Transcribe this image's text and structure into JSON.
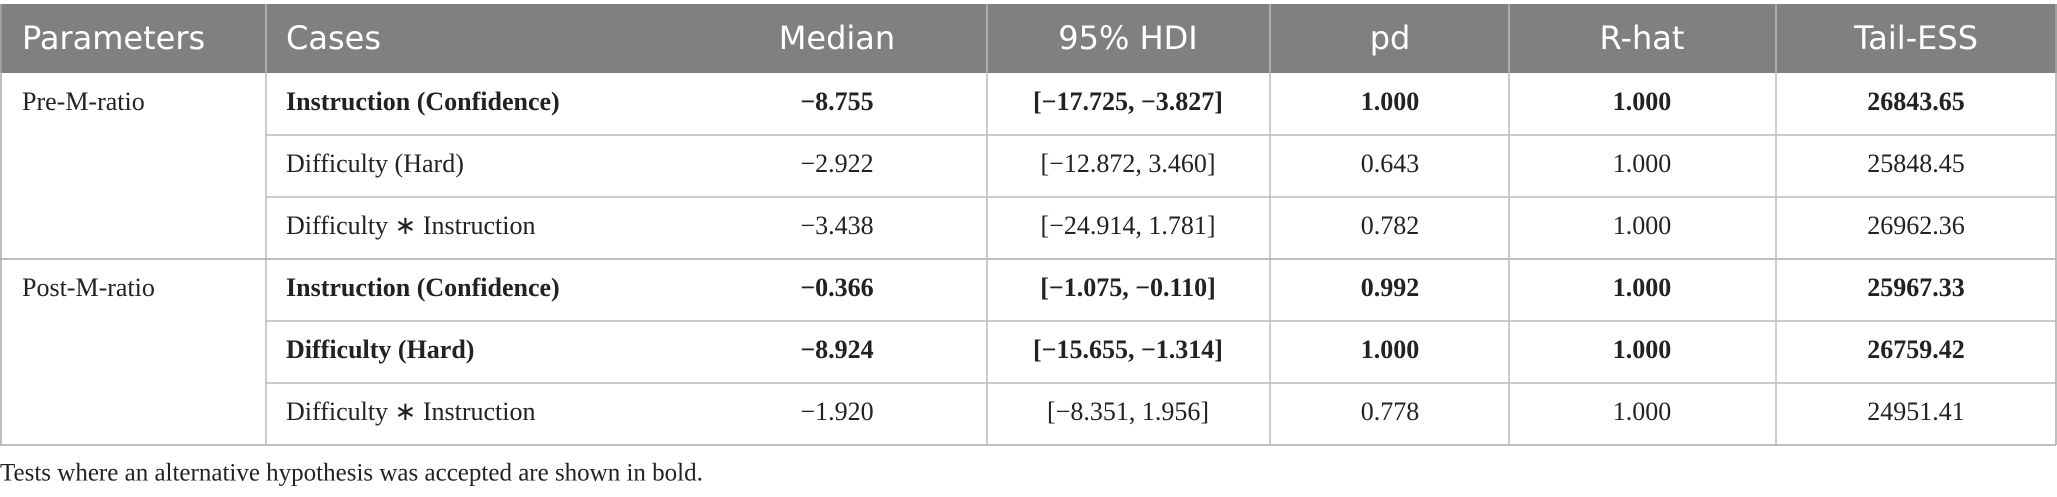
{
  "header": [
    "Parameters",
    "Cases",
    "Median",
    "95% HDI",
    "pd",
    "R-hat",
    "Tail-ESS"
  ],
  "groups": [
    {
      "parameter": "Pre-M-ratio",
      "rows": [
        {
          "case": "Instruction (Confidence)",
          "median": "−8.755",
          "hdi": "[−17.725, −3.827]",
          "pd": "1.000",
          "rhat": "1.000",
          "ess": "26843.65",
          "bold": true
        },
        {
          "case": "Difficulty (Hard)",
          "median": "−2.922",
          "hdi": "[−12.872, 3.460]",
          "pd": "0.643",
          "rhat": "1.000",
          "ess": "25848.45",
          "bold": false
        },
        {
          "case": "Difficulty ∗ Instruction",
          "median": "−3.438",
          "hdi": "[−24.914, 1.781]",
          "pd": "0.782",
          "rhat": "1.000",
          "ess": "26962.36",
          "bold": false
        }
      ]
    },
    {
      "parameter": "Post-M-ratio",
      "rows": [
        {
          "case": "Instruction (Confidence)",
          "median": "−0.366",
          "hdi": "[−1.075, −0.110]",
          "pd": "0.992",
          "rhat": "1.000",
          "ess": "25967.33",
          "bold": true
        },
        {
          "case": "Difficulty (Hard)",
          "median": "−8.924",
          "hdi": "[−15.655, −1.314]",
          "pd": "1.000",
          "rhat": "1.000",
          "ess": "26759.42",
          "bold": true
        },
        {
          "case": "Difficulty ∗ Instruction",
          "median": "−1.920",
          "hdi": "[−8.351, 1.956]",
          "pd": "0.778",
          "rhat": "1.000",
          "ess": "24951.41",
          "bold": false
        }
      ]
    }
  ],
  "footnote": "Tests where an alternative hypothesis was accepted are shown in bold."
}
